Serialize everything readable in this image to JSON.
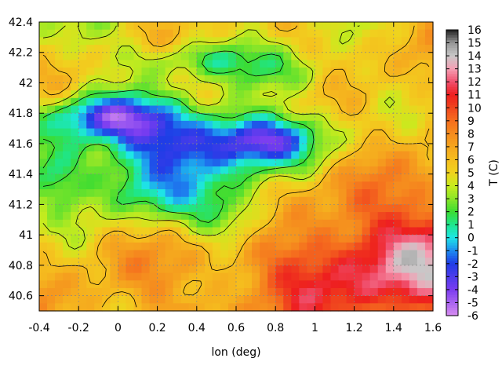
{
  "chart_data": {
    "type": "heatmap",
    "title": "",
    "xlabel": "lon (deg)",
    "ylabel": "",
    "colorbar_label": "T (C)",
    "xlim": [
      -0.4,
      1.6
    ],
    "ylim": [
      40.5,
      42.4
    ],
    "x_ticks": [
      {
        "value": -0.4,
        "label": "-0.4"
      },
      {
        "value": -0.2,
        "label": "-0.2"
      },
      {
        "value": 0,
        "label": "0"
      },
      {
        "value": 0.2,
        "label": "0.2"
      },
      {
        "value": 0.4,
        "label": "0.4"
      },
      {
        "value": 0.6,
        "label": "0.6"
      },
      {
        "value": 0.8,
        "label": "0.8"
      },
      {
        "value": 1,
        "label": "1"
      },
      {
        "value": 1.2,
        "label": "1.2"
      },
      {
        "value": 1.4,
        "label": "1.4"
      },
      {
        "value": 1.6,
        "label": "1.6"
      }
    ],
    "y_ticks": [
      {
        "value": 40.6,
        "label": "40.6"
      },
      {
        "value": 40.8,
        "label": "40.8"
      },
      {
        "value": 41,
        "label": "41"
      },
      {
        "value": 41.2,
        "label": "41.2"
      },
      {
        "value": 41.4,
        "label": "41.4"
      },
      {
        "value": 41.6,
        "label": "41.6"
      },
      {
        "value": 41.8,
        "label": "41.8"
      },
      {
        "value": 42,
        "label": "42"
      },
      {
        "value": 42.2,
        "label": "42.2"
      },
      {
        "value": 42.4,
        "label": "42.4"
      }
    ],
    "color_range": [
      -6,
      16
    ],
    "colorbar_ticks": [
      {
        "value": 16,
        "label": "16"
      },
      {
        "value": 15,
        "label": "15"
      },
      {
        "value": 14,
        "label": "14"
      },
      {
        "value": 13,
        "label": "13"
      },
      {
        "value": 12,
        "label": "12"
      },
      {
        "value": 11,
        "label": "11"
      },
      {
        "value": 10,
        "label": "10"
      },
      {
        "value": 9,
        "label": "9"
      },
      {
        "value": 8,
        "label": "8"
      },
      {
        "value": 7,
        "label": "7"
      },
      {
        "value": 6,
        "label": "6"
      },
      {
        "value": 5,
        "label": "5"
      },
      {
        "value": 4,
        "label": "4"
      },
      {
        "value": 3,
        "label": "3"
      },
      {
        "value": 2,
        "label": "2"
      },
      {
        "value": 1,
        "label": "1"
      },
      {
        "value": 0,
        "label": "0"
      },
      {
        "value": -1,
        "label": "-1"
      },
      {
        "value": -2,
        "label": "-2"
      },
      {
        "value": -3,
        "label": "-3"
      },
      {
        "value": -4,
        "label": "-4"
      },
      {
        "value": -5,
        "label": "-5"
      },
      {
        "value": -6,
        "label": "-6"
      }
    ],
    "colormap": [
      {
        "value": -6,
        "color": "#d78cf0"
      },
      {
        "value": -4,
        "color": "#7a3cf0"
      },
      {
        "value": -2,
        "color": "#1f3ce6"
      },
      {
        "value": -1,
        "color": "#1e8cf0"
      },
      {
        "value": 0,
        "color": "#1ee6e6"
      },
      {
        "value": 1,
        "color": "#1ee68c"
      },
      {
        "value": 2,
        "color": "#3cdc32"
      },
      {
        "value": 3,
        "color": "#8ce628"
      },
      {
        "value": 4,
        "color": "#c8eb1e"
      },
      {
        "value": 5,
        "color": "#f0d21e"
      },
      {
        "value": 6,
        "color": "#f5be1e"
      },
      {
        "value": 7,
        "color": "#f5a51e"
      },
      {
        "value": 8,
        "color": "#f58c1e"
      },
      {
        "value": 9,
        "color": "#f56e1e"
      },
      {
        "value": 10,
        "color": "#f0461e"
      },
      {
        "value": 11,
        "color": "#ee1e1e"
      },
      {
        "value": 12,
        "color": "#f0506e"
      },
      {
        "value": 13,
        "color": "#f5a0b4"
      },
      {
        "value": 14,
        "color": "#c8c8c8"
      },
      {
        "value": 15,
        "color": "#969696"
      },
      {
        "value": 16,
        "color": "#1e1e1e"
      }
    ],
    "grid": true,
    "grid_style": "dashed",
    "contour_levels": [
      2,
      4,
      6
    ],
    "field_resolution": [
      50,
      38
    ],
    "field_features": [
      {
        "kind": "base",
        "value": 6.5
      },
      {
        "kind": "trend",
        "dx": 0.6,
        "dy": -1.0
      },
      {
        "kind": "warm",
        "lon": 1.55,
        "lat": 40.85,
        "rx": 0.55,
        "ry": 0.4,
        "value": 4.5
      },
      {
        "kind": "warm",
        "lon": 1.0,
        "lat": 40.75,
        "rx": 0.45,
        "ry": 0.3,
        "value": 2.0
      },
      {
        "kind": "cold",
        "lon": 0.45,
        "lat": 41.62,
        "rx": 0.55,
        "ry": 0.22,
        "value": -8.5
      },
      {
        "kind": "cold",
        "lon": -0.05,
        "lat": 41.78,
        "rx": 0.3,
        "ry": 0.14,
        "value": -6.5
      },
      {
        "kind": "cold",
        "lon": 0.75,
        "lat": 41.62,
        "rx": 0.2,
        "ry": 0.12,
        "value": -3.0
      },
      {
        "kind": "cold",
        "lon": 0.15,
        "lat": 41.3,
        "rx": 0.45,
        "ry": 0.22,
        "value": -4.5
      },
      {
        "kind": "cold",
        "lon": 0.6,
        "lat": 41.1,
        "rx": 0.22,
        "ry": 0.2,
        "value": -4.0
      },
      {
        "kind": "cold",
        "lon": 0.4,
        "lat": 42.15,
        "rx": 0.35,
        "ry": 0.12,
        "value": -3.0
      },
      {
        "kind": "cold",
        "lon": 0.9,
        "lat": 42.05,
        "rx": 0.25,
        "ry": 0.15,
        "value": -3.0
      },
      {
        "kind": "cold",
        "lon": -0.3,
        "lat": 41.4,
        "rx": 0.15,
        "ry": 0.2,
        "value": -3.0
      }
    ]
  }
}
